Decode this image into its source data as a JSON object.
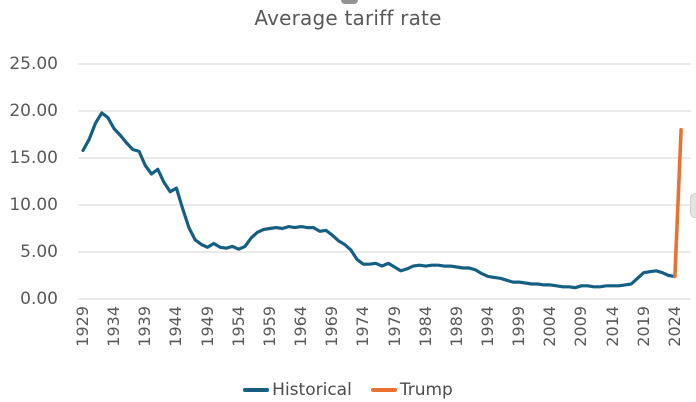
{
  "chart_data": {
    "type": "line",
    "title": "Average tariff rate",
    "grid": "horizontal",
    "x_axis": {
      "start_year": 1929,
      "end_year": 2025,
      "tick_interval_years": 5,
      "label_rotation_deg": -90,
      "tick_labels": [
        "1929",
        "1934",
        "1939",
        "1944",
        "1949",
        "1954",
        "1959",
        "1964",
        "1969",
        "1974",
        "1979",
        "1984",
        "1989",
        "1994",
        "1999",
        "2004",
        "2009",
        "2014",
        "2019",
        "2024"
      ]
    },
    "y_axis": {
      "min": 0,
      "max": 25,
      "tick_step": 5,
      "tick_labels": [
        "25.00",
        "20.00",
        "15.00",
        "10.00",
        "5.00",
        "0.00"
      ]
    },
    "legend": {
      "position": "bottom",
      "entries": [
        {
          "label": "Historical",
          "color": "#156082"
        },
        {
          "label": "Trump",
          "color": "#E97132"
        }
      ]
    },
    "series": [
      {
        "name": "Historical",
        "color": "#156082",
        "start_year": 1929,
        "values": [
          15.8,
          17.0,
          18.7,
          19.8,
          19.3,
          18.1,
          17.4,
          16.6,
          15.9,
          15.7,
          14.2,
          13.3,
          13.8,
          12.4,
          11.4,
          11.8,
          9.6,
          7.6,
          6.3,
          5.8,
          5.5,
          5.9,
          5.5,
          5.4,
          5.6,
          5.3,
          5.6,
          6.5,
          7.1,
          7.4,
          7.5,
          7.6,
          7.5,
          7.7,
          7.6,
          7.7,
          7.6,
          7.6,
          7.2,
          7.3,
          6.8,
          6.2,
          5.8,
          5.2,
          4.2,
          3.7,
          3.7,
          3.8,
          3.5,
          3.8,
          3.4,
          3.0,
          3.2,
          3.5,
          3.6,
          3.5,
          3.6,
          3.6,
          3.5,
          3.5,
          3.4,
          3.3,
          3.3,
          3.1,
          2.7,
          2.4,
          2.3,
          2.2,
          2.0,
          1.8,
          1.8,
          1.7,
          1.6,
          1.6,
          1.5,
          1.5,
          1.4,
          1.3,
          1.3,
          1.2,
          1.4,
          1.4,
          1.3,
          1.3,
          1.4,
          1.4,
          1.4,
          1.5,
          1.6,
          2.2,
          2.8,
          2.9,
          3.0,
          2.8,
          2.5,
          2.4
        ]
      },
      {
        "name": "Trump",
        "color": "#E97132",
        "start_year": 2024,
        "values": [
          2.4,
          18.0
        ]
      }
    ],
    "colors": {
      "background": "#ffffff",
      "gridline": "#d6d6d6",
      "axis_text": "#595959",
      "title_text": "#595959",
      "legend_text": "#4d4d4d"
    }
  }
}
